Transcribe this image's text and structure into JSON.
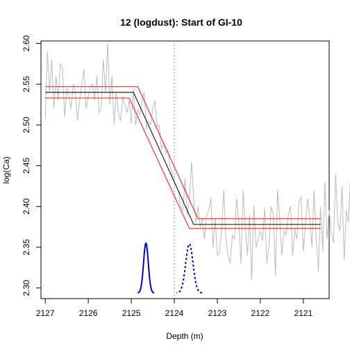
{
  "chart_data": {
    "type": "line",
    "title": "12 (logdust): Start of GI-10",
    "xlabel": "Depth (m)",
    "ylabel": "log(Ca)",
    "xlim": [
      2127.1,
      2120.4
    ],
    "ylim": [
      2.287,
      2.603
    ],
    "x_reversed": true,
    "xticks": [
      2127,
      2126,
      2125,
      2124,
      2123,
      2122,
      2121
    ],
    "yticks": [
      2.3,
      2.35,
      2.4,
      2.45,
      2.5,
      2.55,
      2.6
    ],
    "ytick_labels": [
      "2.30",
      "2.35",
      "2.40",
      "2.45",
      "2.50",
      "2.55",
      "2.60"
    ],
    "grid": false,
    "legend": "none",
    "vline": {
      "x": 2124.0,
      "style": "dotted",
      "color": "#aaaaaa"
    },
    "colors": {
      "raw": "#bbbbbb",
      "fit": "#222222",
      "bounds": "#ee3333",
      "onset": "#0000cc"
    },
    "series": [
      {
        "role": "raw",
        "x_start": 2127.0,
        "x_step": -0.05,
        "values": [
          2.508,
          2.59,
          2.54,
          2.58,
          2.52,
          2.56,
          2.53,
          2.575,
          2.57,
          2.51,
          2.545,
          2.535,
          2.52,
          2.55,
          2.54,
          2.505,
          2.53,
          2.55,
          2.568,
          2.52,
          2.535,
          2.545,
          2.55,
          2.53,
          2.56,
          2.515,
          2.52,
          2.58,
          2.54,
          2.6,
          2.525,
          2.56,
          2.5,
          2.54,
          2.515,
          2.505,
          2.535,
          2.525,
          2.515,
          2.53,
          2.502,
          2.545,
          2.5,
          2.52,
          2.512,
          2.53,
          2.54,
          2.495,
          2.505,
          2.5,
          2.52,
          2.53,
          2.498,
          2.5,
          2.47,
          2.48,
          2.465,
          2.47,
          2.45,
          2.44,
          2.43,
          2.425,
          2.418,
          2.4,
          2.395,
          2.435,
          2.39,
          2.408,
          2.455,
          2.41,
          2.38,
          2.4,
          2.375,
          2.385,
          2.36,
          2.39,
          2.395,
          2.41,
          2.35,
          2.385,
          2.34,
          2.345,
          2.37,
          2.42,
          2.36,
          2.34,
          2.33,
          2.365,
          2.36,
          2.41,
          2.38,
          2.33,
          2.42,
          2.375,
          2.34,
          2.39,
          2.31,
          2.402,
          2.35,
          2.36,
          2.37,
          2.358,
          2.398,
          2.33,
          2.352,
          2.4,
          2.39,
          2.315,
          2.42,
          2.385,
          2.34,
          2.37,
          2.365,
          2.39,
          2.4,
          2.34,
          2.372,
          2.36,
          2.405,
          2.412,
          2.345,
          2.38,
          2.41,
          2.385,
          2.35,
          2.42,
          2.36,
          2.32,
          2.4,
          2.345,
          2.43,
          2.36,
          2.395,
          2.37,
          2.355,
          2.44,
          2.38,
          2.37,
          2.425,
          2.335,
          2.395,
          2.38,
          2.445,
          2.4
        ]
      },
      {
        "role": "fit",
        "x": [
          2127.0,
          2124.95,
          2123.55,
          2120.6
        ],
        "y": [
          2.54,
          2.54,
          2.378,
          2.378
        ]
      },
      {
        "role": "upper",
        "x": [
          2127.0,
          2124.85,
          2123.45,
          2120.6
        ],
        "y": [
          2.547,
          2.547,
          2.385,
          2.385
        ]
      },
      {
        "role": "lower",
        "x": [
          2127.0,
          2125.05,
          2123.65,
          2120.6
        ],
        "y": [
          2.533,
          2.533,
          2.373,
          2.373
        ]
      }
    ],
    "onset_distributions": [
      {
        "name": "start",
        "center": 2124.66,
        "sd": 0.055,
        "y_base": 2.294,
        "height": 0.061,
        "style": "solid"
      },
      {
        "name": "end",
        "center": 2123.65,
        "sd": 0.085,
        "y_base": 2.294,
        "height": 0.06,
        "style": "dashed"
      }
    ]
  }
}
